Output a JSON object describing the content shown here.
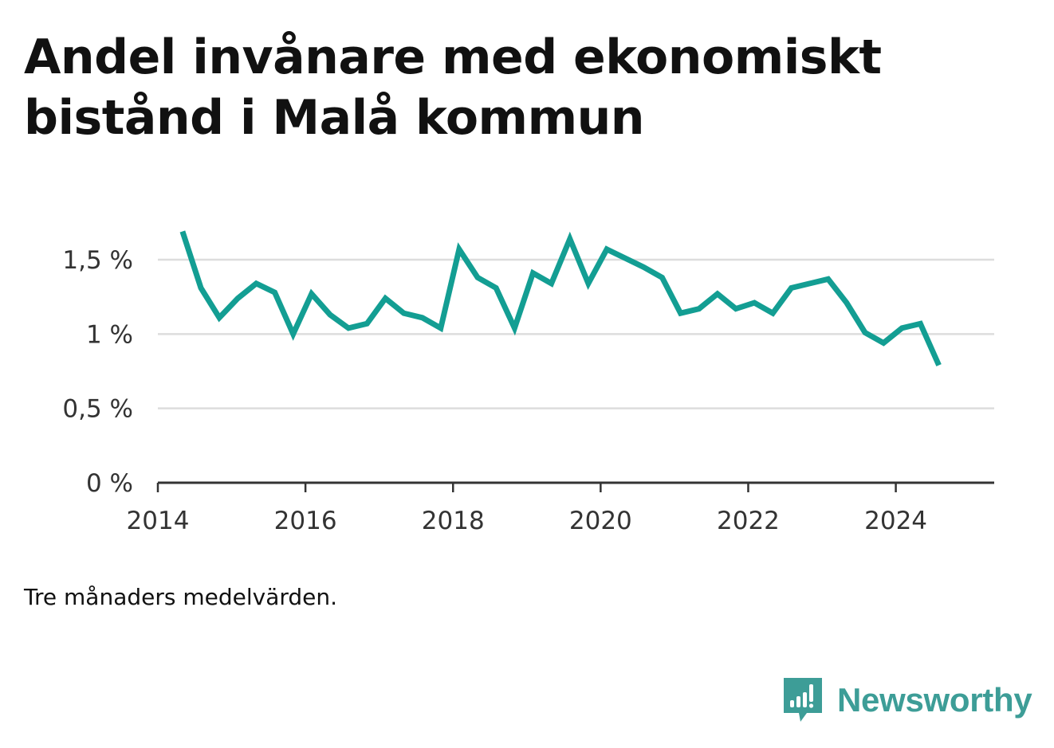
{
  "title": "Andel invånare med ekonomiskt bistånd i Malå kommun",
  "note": "Tre månaders medelvärden.",
  "brand": {
    "name": "Newsworthy",
    "icon": "newsworthy-logo-icon",
    "color": "#3d9d97"
  },
  "chart_data": {
    "type": "line",
    "title": "Andel invånare med ekonomiskt bistånd i Malå kommun",
    "xlabel": "",
    "ylabel": "",
    "x_ticks": [
      "2014",
      "2016",
      "2018",
      "2020",
      "2022",
      "2024"
    ],
    "y_ticks": [
      "0 %",
      "0,5 %",
      "1 %",
      "1,5 %"
    ],
    "y_tick_values": [
      0,
      0.5,
      1,
      1.5
    ],
    "ylim": [
      0,
      1.8
    ],
    "xlim": [
      "2014-01",
      "2025-05"
    ],
    "grid": "horizontal",
    "line_color": "#139e93",
    "series": [
      {
        "name": "",
        "x": [
          "2014-05",
          "2014-08",
          "2014-11",
          "2015-02",
          "2015-05",
          "2015-08",
          "2015-11",
          "2016-02",
          "2016-05",
          "2016-08",
          "2016-11",
          "2017-02",
          "2017-05",
          "2017-08",
          "2017-11",
          "2018-02",
          "2018-05",
          "2018-08",
          "2018-11",
          "2019-02",
          "2019-05",
          "2019-08",
          "2019-11",
          "2020-02",
          "2020-05",
          "2020-08",
          "2020-11",
          "2021-02",
          "2021-05",
          "2021-08",
          "2021-11",
          "2022-02",
          "2022-05",
          "2022-08",
          "2022-11",
          "2023-02",
          "2023-05",
          "2023-08",
          "2023-11",
          "2024-02",
          "2024-05",
          "2024-08"
        ],
        "values": [
          1.69,
          1.31,
          1.11,
          1.24,
          1.34,
          1.28,
          1.0,
          1.27,
          1.13,
          1.04,
          1.07,
          1.24,
          1.14,
          1.11,
          1.04,
          1.57,
          1.38,
          1.31,
          1.04,
          1.41,
          1.34,
          1.64,
          1.34,
          1.57,
          1.51,
          1.45,
          1.38,
          1.14,
          1.17,
          1.27,
          1.17,
          1.21,
          1.14,
          1.31,
          1.34,
          1.37,
          1.21,
          1.01,
          0.94,
          1.04,
          1.07,
          0.79
        ]
      }
    ]
  }
}
